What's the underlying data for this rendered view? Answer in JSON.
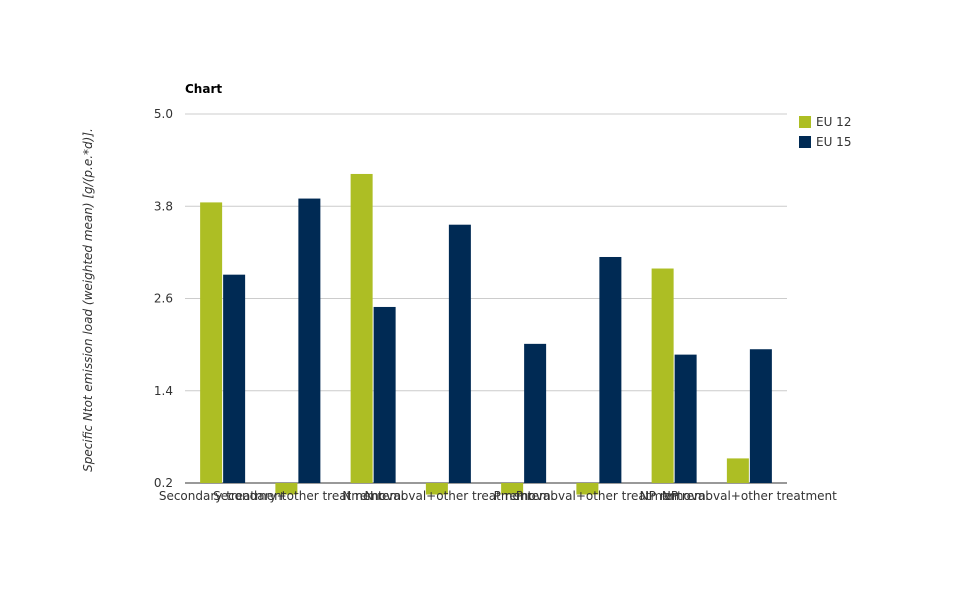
{
  "chart_data": {
    "type": "bar",
    "title": "Chart",
    "ylabel": "Specific Ntot emission load (weighted mean) [g/(p.e.*d)].",
    "xlabel": "",
    "ylim": [
      0.2,
      5.0
    ],
    "yticks": [
      "0.2",
      "1.4",
      "2.6",
      "3.8",
      "5.0"
    ],
    "categories": [
      "Secondary treatment",
      "Secondary+other treatment",
      "N removal",
      "N removal+other treatment",
      "P removal",
      "P removal+other treatment",
      "NP removal",
      "NP removal+other treatment"
    ],
    "series": [
      {
        "name": "EU 12",
        "color": "#adbe24",
        "values": [
          3.85,
          0.05,
          4.22,
          0.05,
          0.05,
          0.05,
          2.99,
          0.52
        ]
      },
      {
        "name": "EU 15",
        "color": "#002a54",
        "values": [
          2.91,
          3.9,
          2.49,
          3.56,
          2.01,
          3.14,
          1.87,
          1.94
        ]
      }
    ],
    "grid": true,
    "legend_position": "top-right"
  }
}
